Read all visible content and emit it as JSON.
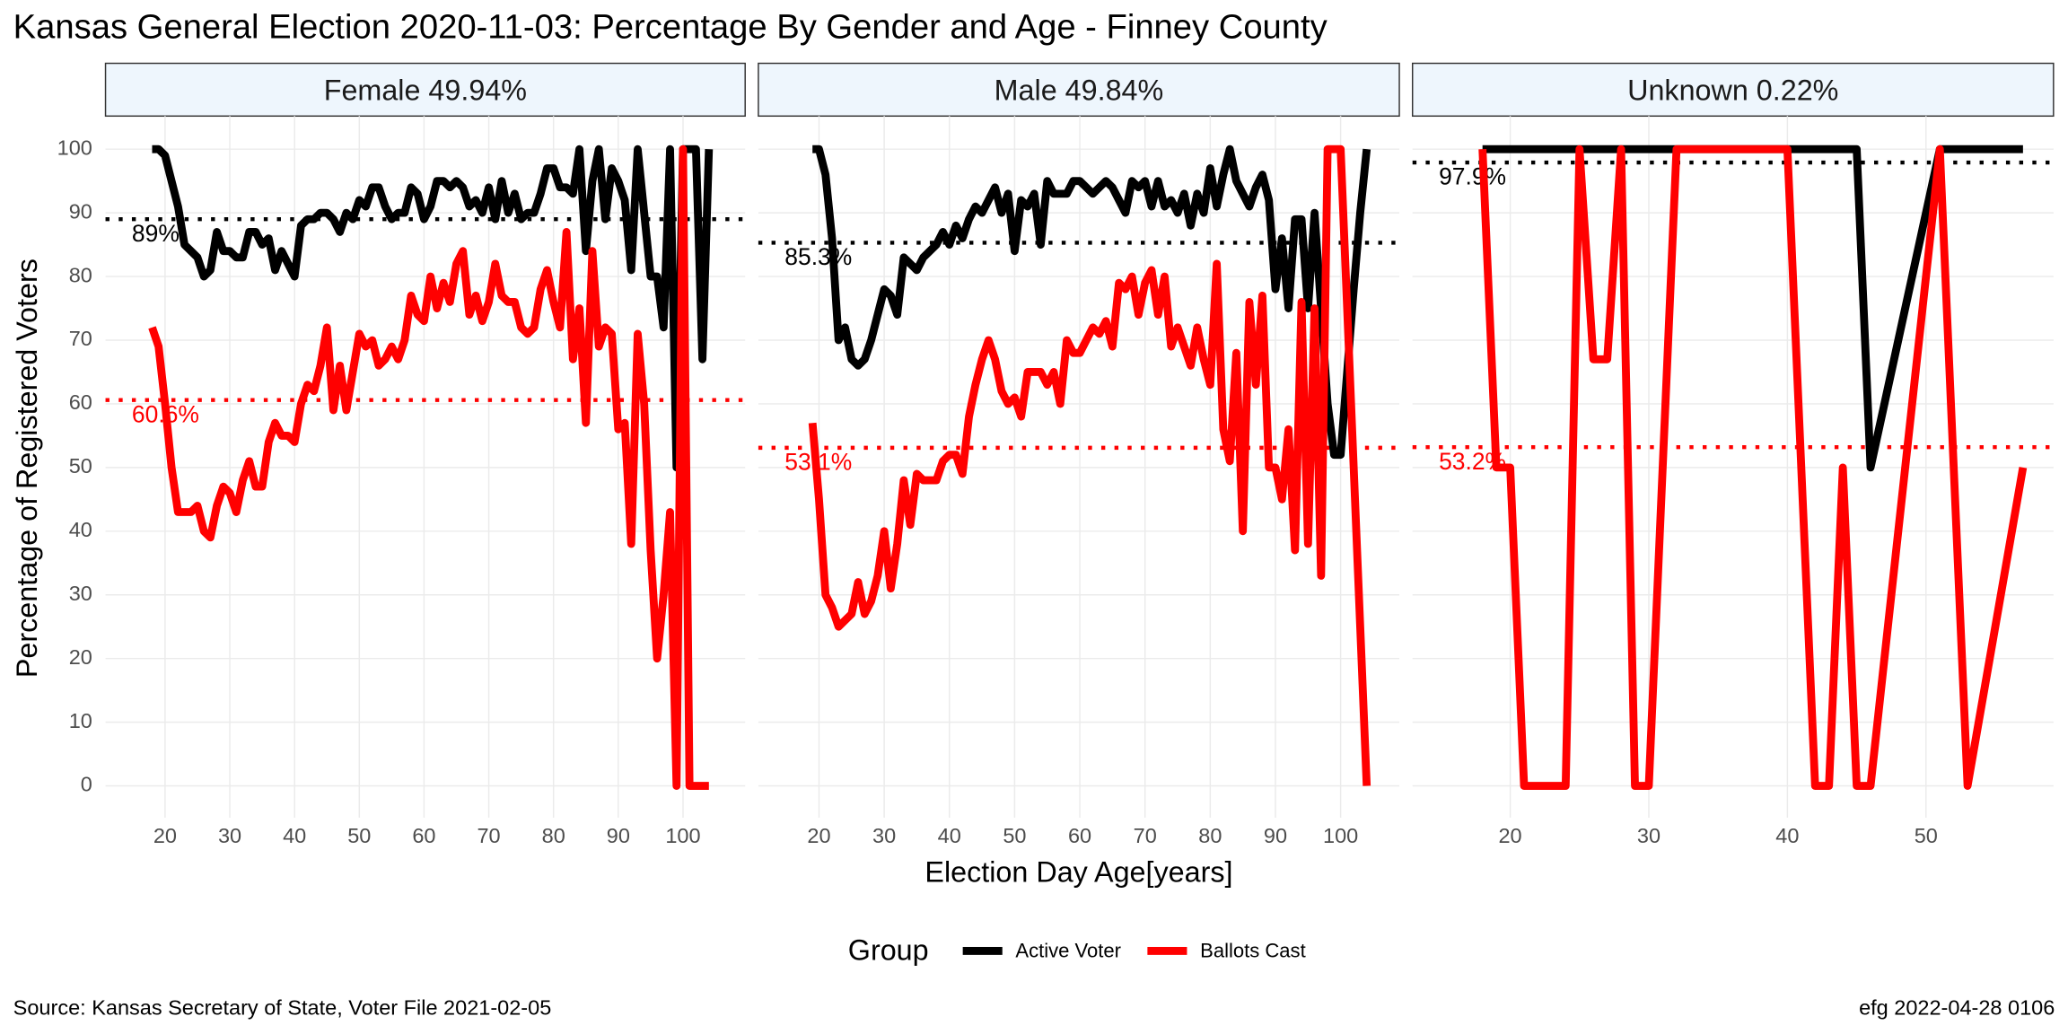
{
  "header": {
    "title": "Kansas General Election 2020-11-03:  Percentage By Gender and Age - Finney County"
  },
  "axes": {
    "x_label": "Election Day Age[years]",
    "y_label": "Percentage of Registered Voters"
  },
  "legend": {
    "title": "Group"
  },
  "footer": {
    "source": "Source:  Kansas Secretary of State, Voter File  2021-02-05",
    "stamp": "efg 2022-04-28 0106"
  },
  "chart_data": [
    {
      "type": "line",
      "title": "Female 49.94%",
      "xlim": [
        10.8,
        109.6
      ],
      "xticks": [
        20,
        30,
        40,
        50,
        60,
        70,
        80,
        90,
        100
      ],
      "ylim": [
        -5,
        105.2
      ],
      "yticks": [
        0,
        10,
        20,
        30,
        40,
        50,
        60,
        70,
        80,
        90,
        100
      ],
      "grid": true,
      "series": [
        {
          "name": "Active Voter",
          "color": "#000000",
          "x": [
            18,
            19,
            20,
            21,
            22,
            23,
            24,
            25,
            26,
            27,
            28,
            29,
            30,
            31,
            32,
            33,
            34,
            35,
            36,
            37,
            38,
            39,
            40,
            41,
            42,
            43,
            44,
            45,
            46,
            47,
            48,
            49,
            50,
            51,
            52,
            53,
            54,
            55,
            56,
            57,
            58,
            59,
            60,
            61,
            62,
            63,
            64,
            65,
            66,
            67,
            68,
            69,
            70,
            71,
            72,
            73,
            74,
            75,
            76,
            77,
            78,
            79,
            80,
            81,
            82,
            83,
            84,
            85,
            86,
            87,
            88,
            89,
            90,
            91,
            92,
            93,
            94,
            95,
            96,
            97,
            98,
            99,
            100,
            101,
            102,
            103,
            104
          ],
          "values": [
            100,
            100,
            99,
            95,
            91,
            85,
            84,
            83,
            80,
            81,
            87,
            84,
            84,
            83,
            83,
            87,
            87,
            85,
            86,
            81,
            84,
            82,
            80,
            88,
            89,
            89,
            90,
            90,
            89,
            87,
            90,
            89,
            92,
            91,
            94,
            94,
            91,
            89,
            90,
            90,
            94,
            93,
            89,
            91,
            95,
            95,
            94,
            95,
            94,
            91,
            92,
            90,
            94,
            89,
            95,
            90,
            93,
            89,
            90,
            90,
            93,
            97,
            97,
            94,
            94,
            93,
            100,
            84,
            95,
            100,
            89,
            97,
            95,
            92,
            81,
            100,
            90,
            80,
            80,
            72,
            100,
            50,
            100,
            100,
            100,
            67,
            100
          ]
        },
        {
          "name": "Ballots Cast",
          "color": "#ff0000",
          "x": [
            18,
            19,
            20,
            21,
            22,
            23,
            24,
            25,
            26,
            27,
            28,
            29,
            30,
            31,
            32,
            33,
            34,
            35,
            36,
            37,
            38,
            39,
            40,
            41,
            42,
            43,
            44,
            45,
            46,
            47,
            48,
            49,
            50,
            51,
            52,
            53,
            54,
            55,
            56,
            57,
            58,
            59,
            60,
            61,
            62,
            63,
            64,
            65,
            66,
            67,
            68,
            69,
            70,
            71,
            72,
            73,
            74,
            75,
            76,
            77,
            78,
            79,
            80,
            81,
            82,
            83,
            84,
            85,
            86,
            87,
            88,
            89,
            90,
            91,
            92,
            93,
            94,
            95,
            96,
            97,
            98,
            99,
            100,
            101,
            102,
            103,
            104
          ],
          "values": [
            72,
            69,
            60,
            50,
            43,
            43,
            43,
            44,
            40,
            39,
            44,
            47,
            46,
            43,
            48,
            51,
            47,
            47,
            54,
            57,
            55,
            55,
            54,
            60,
            63,
            62,
            66,
            72,
            59,
            66,
            59,
            65,
            71,
            69,
            70,
            66,
            67,
            69,
            67,
            70,
            77,
            74,
            73,
            80,
            75,
            79,
            76,
            82,
            84,
            74,
            77,
            73,
            76,
            82,
            77,
            76,
            76,
            72,
            71,
            72,
            78,
            81,
            76,
            72,
            87,
            67,
            75,
            57,
            84,
            69,
            72,
            71,
            56,
            57,
            38,
            71,
            60,
            37,
            20,
            30,
            43,
            0,
            100,
            0,
            0,
            0,
            0
          ]
        }
      ],
      "hlines": [
        {
          "value": 89,
          "label": "89%",
          "color": "#000000"
        },
        {
          "value": 60.6,
          "label": "60.6%",
          "color": "#ff0000"
        }
      ]
    },
    {
      "type": "line",
      "title": "Male 49.84%",
      "xlim": [
        10.7,
        109
      ],
      "xticks": [
        20,
        30,
        40,
        50,
        60,
        70,
        80,
        90,
        100
      ],
      "ylim": [
        -5,
        105.2
      ],
      "yticks": [
        0,
        10,
        20,
        30,
        40,
        50,
        60,
        70,
        80,
        90,
        100
      ],
      "grid": true,
      "series": [
        {
          "name": "Active Voter",
          "color": "#000000",
          "x": [
            19,
            20,
            21,
            22,
            23,
            24,
            25,
            26,
            27,
            28,
            29,
            30,
            31,
            32,
            33,
            34,
            35,
            36,
            37,
            38,
            39,
            40,
            41,
            42,
            43,
            44,
            45,
            46,
            47,
            48,
            49,
            50,
            51,
            52,
            53,
            54,
            55,
            56,
            57,
            58,
            59,
            60,
            61,
            62,
            63,
            64,
            65,
            66,
            67,
            68,
            69,
            70,
            71,
            72,
            73,
            74,
            75,
            76,
            77,
            78,
            79,
            80,
            81,
            82,
            83,
            84,
            85,
            86,
            87,
            88,
            89,
            90,
            91,
            92,
            93,
            94,
            95,
            96,
            97,
            98,
            99,
            100,
            101,
            102,
            103,
            104
          ],
          "values": [
            100,
            100,
            96,
            86,
            70,
            72,
            67,
            66,
            67,
            70,
            74,
            78,
            77,
            74,
            83,
            82,
            81,
            83,
            84,
            85,
            87,
            85,
            88,
            86,
            89,
            91,
            90,
            92,
            94,
            90,
            93,
            84,
            92,
            91,
            93,
            85,
            95,
            93,
            93,
            93,
            95,
            95,
            94,
            93,
            94,
            95,
            94,
            92,
            90,
            95,
            94,
            95,
            91,
            95,
            91,
            92,
            90,
            93,
            88,
            93,
            90,
            97,
            91,
            96,
            100,
            95,
            93,
            91,
            94,
            96,
            92,
            78,
            86,
            75,
            89,
            89,
            75,
            90,
            75,
            60,
            52,
            52,
            65,
            78,
            90,
            100
          ]
        },
        {
          "name": "Ballots Cast",
          "color": "#ff0000",
          "x": [
            19,
            20,
            21,
            22,
            23,
            24,
            25,
            26,
            27,
            28,
            29,
            30,
            31,
            32,
            33,
            34,
            35,
            36,
            37,
            38,
            39,
            40,
            41,
            42,
            43,
            44,
            45,
            46,
            47,
            48,
            49,
            50,
            51,
            52,
            53,
            54,
            55,
            56,
            57,
            58,
            59,
            60,
            61,
            62,
            63,
            64,
            65,
            66,
            67,
            68,
            69,
            70,
            71,
            72,
            73,
            74,
            75,
            76,
            77,
            78,
            79,
            80,
            81,
            82,
            83,
            84,
            85,
            86,
            87,
            88,
            89,
            90,
            91,
            92,
            93,
            94,
            95,
            96,
            97,
            98,
            99,
            100,
            101,
            102,
            103,
            104
          ],
          "values": [
            57,
            45,
            30,
            28,
            25,
            26,
            27,
            32,
            27,
            29,
            33,
            40,
            31,
            38,
            48,
            41,
            49,
            48,
            48,
            48,
            51,
            52,
            52,
            49,
            58,
            63,
            67,
            70,
            67,
            62,
            60,
            61,
            58,
            65,
            65,
            65,
            63,
            65,
            60,
            70,
            68,
            68,
            70,
            72,
            71,
            73,
            69,
            79,
            78,
            80,
            74,
            79,
            81,
            74,
            80,
            69,
            72,
            69,
            66,
            72,
            67,
            63,
            82,
            56,
            51,
            68,
            40,
            76,
            63,
            77,
            50,
            50,
            45,
            56,
            37,
            76,
            38,
            75,
            33,
            100,
            100,
            100,
            75,
            50,
            25,
            0
          ]
        }
      ],
      "hlines": [
        {
          "value": 85.3,
          "label": "85.3%",
          "color": "#000000"
        },
        {
          "value": 53.1,
          "label": "53.1%",
          "color": "#ff0000"
        }
      ]
    },
    {
      "type": "line",
      "title": "Unknown 0.22%",
      "xlim": [
        12.95,
        59.2
      ],
      "xticks": [
        20,
        30,
        40,
        50
      ],
      "ylim": [
        -5,
        105.2
      ],
      "yticks": [
        0,
        10,
        20,
        30,
        40,
        50,
        60,
        70,
        80,
        90,
        100
      ],
      "grid": true,
      "series": [
        {
          "name": "Active Voter",
          "color": "#000000",
          "x": [
            18,
            45,
            46,
            51,
            57
          ],
          "values": [
            100,
            100,
            50,
            100,
            100
          ]
        },
        {
          "name": "Ballots Cast",
          "color": "#ff0000",
          "x": [
            18,
            19,
            20,
            21,
            22,
            23,
            24,
            25,
            26,
            27,
            28,
            29,
            30,
            32,
            40,
            42,
            43,
            44,
            45,
            46,
            51,
            53,
            57
          ],
          "values": [
            100,
            50,
            50,
            0,
            0,
            0,
            0,
            100,
            67,
            67,
            100,
            0,
            0,
            100,
            100,
            0,
            0,
            50,
            0,
            0,
            100,
            0,
            50
          ]
        }
      ],
      "hlines": [
        {
          "value": 97.9,
          "label": "97.9%",
          "color": "#000000"
        },
        {
          "value": 53.2,
          "label": "53.2%",
          "color": "#ff0000"
        }
      ]
    }
  ]
}
